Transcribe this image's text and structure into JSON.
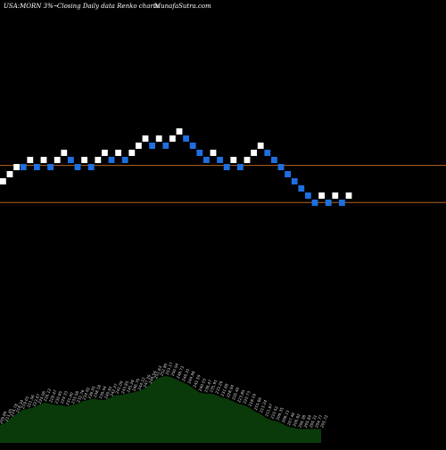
{
  "header": {
    "symbol": "USA:MORN",
    "change": "3%",
    "arrow": "~",
    "description": "Closing Daily data  Renko  charts",
    "site": "MunafaSutra.com"
  },
  "colors": {
    "background": "#000000",
    "up_brick": "#ffffff",
    "down_brick": "#1e6fe0",
    "ref_line": "#b8641e",
    "volume_area": "#0a3a0a",
    "volume_label": "#d8d8d8"
  },
  "chart_data": {
    "type": "renko",
    "grid": false,
    "brick_size_pct": 3,
    "bricks": [
      {
        "dir": "up",
        "level": 0
      },
      {
        "dir": "up",
        "level": 1
      },
      {
        "dir": "up",
        "level": 2
      },
      {
        "dir": "down",
        "level": 2
      },
      {
        "dir": "up",
        "level": 3
      },
      {
        "dir": "down",
        "level": 2
      },
      {
        "dir": "up",
        "level": 3
      },
      {
        "dir": "down",
        "level": 2
      },
      {
        "dir": "up",
        "level": 3
      },
      {
        "dir": "up",
        "level": 4
      },
      {
        "dir": "down",
        "level": 3
      },
      {
        "dir": "down",
        "level": 2
      },
      {
        "dir": "up",
        "level": 3
      },
      {
        "dir": "down",
        "level": 2
      },
      {
        "dir": "up",
        "level": 3
      },
      {
        "dir": "up",
        "level": 4
      },
      {
        "dir": "down",
        "level": 3
      },
      {
        "dir": "up",
        "level": 4
      },
      {
        "dir": "down",
        "level": 3
      },
      {
        "dir": "up",
        "level": 4
      },
      {
        "dir": "up",
        "level": 5
      },
      {
        "dir": "up",
        "level": 6
      },
      {
        "dir": "down",
        "level": 5
      },
      {
        "dir": "up",
        "level": 6
      },
      {
        "dir": "down",
        "level": 5
      },
      {
        "dir": "up",
        "level": 6
      },
      {
        "dir": "up",
        "level": 7
      },
      {
        "dir": "down",
        "level": 6
      },
      {
        "dir": "down",
        "level": 5
      },
      {
        "dir": "down",
        "level": 4
      },
      {
        "dir": "down",
        "level": 3
      },
      {
        "dir": "up",
        "level": 4
      },
      {
        "dir": "down",
        "level": 3
      },
      {
        "dir": "down",
        "level": 2
      },
      {
        "dir": "up",
        "level": 3
      },
      {
        "dir": "down",
        "level": 2
      },
      {
        "dir": "up",
        "level": 3
      },
      {
        "dir": "up",
        "level": 4
      },
      {
        "dir": "up",
        "level": 5
      },
      {
        "dir": "down",
        "level": 4
      },
      {
        "dir": "down",
        "level": 3
      },
      {
        "dir": "down",
        "level": 2
      },
      {
        "dir": "down",
        "level": 1
      },
      {
        "dir": "down",
        "level": 0
      },
      {
        "dir": "down",
        "level": -1
      },
      {
        "dir": "down",
        "level": -2
      },
      {
        "dir": "down",
        "level": -3
      },
      {
        "dir": "up",
        "level": -2
      },
      {
        "dir": "down",
        "level": -3
      },
      {
        "dir": "up",
        "level": -2
      },
      {
        "dir": "down",
        "level": -3
      },
      {
        "dir": "up",
        "level": -2
      }
    ],
    "reference_levels": [
      2.3,
      -2.9
    ],
    "volume": {
      "values": [
        14,
        16,
        20,
        23,
        26,
        27,
        28,
        30,
        32,
        31,
        30,
        30,
        29,
        30,
        31,
        33,
        34,
        35,
        34,
        34,
        36,
        38,
        38,
        39,
        40,
        41,
        43,
        46,
        50,
        52,
        53,
        52,
        50,
        48,
        46,
        43,
        40,
        39,
        39,
        38,
        36,
        35,
        33,
        31,
        30,
        28,
        25,
        23,
        20,
        18,
        17,
        15,
        13,
        12,
        11,
        11,
        11,
        11,
        11
      ],
      "labels": [
        "209.89",
        "211.45",
        "214.78",
        "218.34",
        "219.01",
        "221.56",
        "223.67",
        "225.06",
        "226.12",
        "228.47",
        "230.85",
        "229.33",
        "231.40",
        "233.58",
        "232.76",
        "234.92",
        "236.05",
        "238.18",
        "239.44",
        "240.61",
        "242.37",
        "241.09",
        "243.85",
        "245.26",
        "246.70",
        "244.12",
        "247.39",
        "249.54",
        "251.63",
        "252.80",
        "253.17",
        "250.94",
        "248.72",
        "246.31",
        "244.86",
        "242.59",
        "240.03",
        "238.47",
        "235.91",
        "233.26",
        "231.68",
        "228.94",
        "226.40",
        "223.85",
        "220.73",
        "218.19",
        "215.66",
        "213.24",
        "211.87",
        "210.52",
        "209.35",
        "208.11",
        "207.46",
        "206.92",
        "206.38",
        "205.84",
        "205.31",
        "204.77",
        "205.72"
      ]
    }
  }
}
